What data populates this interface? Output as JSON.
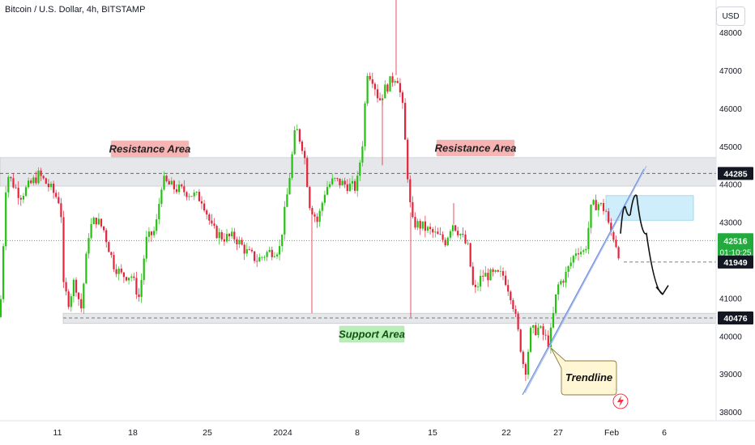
{
  "header": {
    "title": "Bitcoin / U.S. Dollar, 4h, BITSTAMP",
    "currency_button": "USD"
  },
  "colors": {
    "up": "#089981",
    "down": "#f23645",
    "up_bright": "#26c013",
    "down_bright": "#e3243b",
    "resistance_label_bg": "#f8b3b3",
    "support_label_bg": "#b6f0b6",
    "band": "#e6e7ea",
    "projection_box": "#cfeefb",
    "trendline": "#6f8fd6",
    "price_tag": "#22ab3c",
    "level_tag": "#131722"
  },
  "chart_data": {
    "type": "candlestick",
    "x_tick_labels": [
      "11",
      "18",
      "25",
      "2024",
      "8",
      "15",
      "22",
      "27",
      "Feb",
      "6"
    ],
    "y_tick_labels": [
      "38000",
      "39000",
      "40000",
      "41000",
      "43000",
      "44000",
      "45000",
      "46000",
      "47000",
      "48000"
    ],
    "ylim": [
      37900,
      48100
    ],
    "path_points": [
      [
        0,
        40500
      ],
      [
        8,
        44300
      ],
      [
        25,
        43700
      ],
      [
        48,
        44250
      ],
      [
        62,
        43900
      ],
      [
        75,
        43500
      ],
      [
        78,
        41300
      ],
      [
        85,
        40900
      ],
      [
        92,
        41500
      ],
      [
        100,
        40700
      ],
      [
        110,
        42800
      ],
      [
        118,
        43100
      ],
      [
        128,
        42800
      ],
      [
        140,
        41900
      ],
      [
        150,
        41600
      ],
      [
        162,
        41600
      ],
      [
        172,
        41000
      ],
      [
        180,
        42500
      ],
      [
        192,
        42800
      ],
      [
        200,
        44100
      ],
      [
        215,
        43900
      ],
      [
        230,
        43800
      ],
      [
        250,
        43600
      ],
      [
        262,
        42800
      ],
      [
        275,
        42600
      ],
      [
        290,
        42600
      ],
      [
        305,
        42200
      ],
      [
        318,
        42000
      ],
      [
        330,
        42200
      ],
      [
        345,
        42300
      ],
      [
        355,
        43800
      ],
      [
        365,
        45500
      ],
      [
        375,
        44900
      ],
      [
        382,
        43500
      ],
      [
        392,
        43000
      ],
      [
        402,
        43900
      ],
      [
        412,
        44100
      ],
      [
        425,
        44000
      ],
      [
        440,
        43900
      ],
      [
        448,
        45200
      ],
      [
        453,
        47000
      ],
      [
        460,
        46800
      ],
      [
        468,
        46200
      ],
      [
        475,
        46500
      ],
      [
        482,
        46700
      ],
      [
        490,
        46900
      ],
      [
        497,
        46000
      ],
      [
        503,
        44300
      ],
      [
        508,
        43000
      ],
      [
        520,
        42900
      ],
      [
        535,
        42700
      ],
      [
        550,
        42500
      ],
      [
        558,
        43000
      ],
      [
        568,
        42700
      ],
      [
        578,
        42300
      ],
      [
        585,
        41100
      ],
      [
        595,
        41600
      ],
      [
        610,
        41600
      ],
      [
        622,
        41600
      ],
      [
        632,
        41000
      ],
      [
        642,
        39800
      ],
      [
        648,
        39000
      ],
      [
        655,
        40100
      ],
      [
        665,
        40200
      ],
      [
        678,
        39800
      ],
      [
        688,
        41300
      ],
      [
        698,
        41600
      ],
      [
        712,
        42300
      ],
      [
        722,
        42200
      ],
      [
        730,
        43400
      ],
      [
        738,
        43500
      ],
      [
        748,
        43300
      ],
      [
        752,
        42800
      ],
      [
        758,
        42600
      ],
      [
        765,
        42100
      ]
    ],
    "spikes": [
      [
        489,
        49500
      ],
      [
        385,
        40600
      ],
      [
        507,
        40500
      ],
      [
        560,
        43500
      ],
      [
        472,
        44500
      ]
    ],
    "resistance_band": [
      43950,
      44700
    ],
    "support_band": [
      40330,
      40600
    ],
    "resistance_dash": 44285,
    "support_dash": 40476,
    "current_price": 42516,
    "countdown": "01:10:25",
    "level_41949": 41949,
    "price_labels": {
      "resistance": "44285",
      "current": "42516",
      "mid": "41949",
      "support": "40476"
    },
    "trendline": [
      [
        645,
        38450
      ],
      [
        795,
        44400
      ]
    ],
    "trendline2": [
      [
        648,
        38500
      ],
      [
        798,
        44480
      ]
    ],
    "projection_box": {
      "x": [
        748,
        856
      ],
      "y": [
        43050,
        43700
      ]
    },
    "projection_path": [
      [
        766,
        42700
      ],
      [
        772,
        43400
      ],
      [
        778,
        43200
      ],
      [
        786,
        43700
      ],
      [
        798,
        42700
      ],
      [
        818,
        41100
      ]
    ],
    "annotations": {
      "resistance_left": "Resistance Area",
      "resistance_right": "Resistance Area",
      "support": "Support Area",
      "trendline": "Trendline"
    }
  }
}
